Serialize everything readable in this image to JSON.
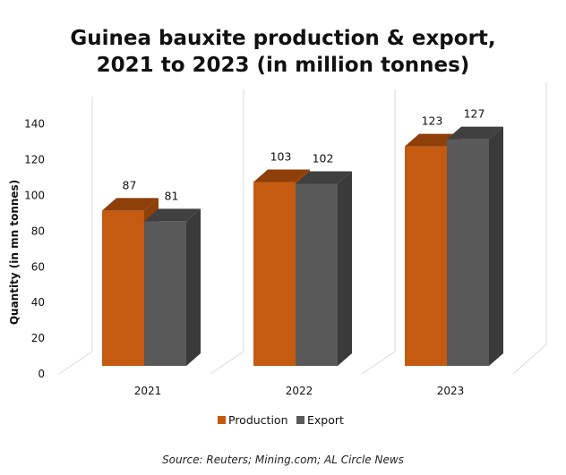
{
  "chart_data": {
    "type": "bar",
    "title_lines": [
      "Guinea bauxite production & export,",
      "2021 to 2023 (in million tonnes)"
    ],
    "categories": [
      "2021",
      "2022",
      "2023"
    ],
    "series": [
      {
        "name": "Production",
        "values": [
          87,
          103,
          123
        ],
        "color": "#C55A11",
        "top_color": "#8E3F0A"
      },
      {
        "name": "Export",
        "values": [
          81,
          102,
          127
        ],
        "color": "#595959",
        "top_color": "#404040"
      }
    ],
    "value_labels": [
      [
        "87",
        "103",
        "123"
      ],
      [
        "81",
        "102",
        "127"
      ]
    ],
    "ylabel": "Quantity (in mn tonnes)",
    "yticks": [
      "0",
      "20",
      "40",
      "60",
      "80",
      "100",
      "120",
      "140"
    ],
    "ylim": [
      0,
      140
    ],
    "grid": false,
    "legend_position": "bottom",
    "source": "Source: Reuters; Mining.com; AL Circle News"
  }
}
